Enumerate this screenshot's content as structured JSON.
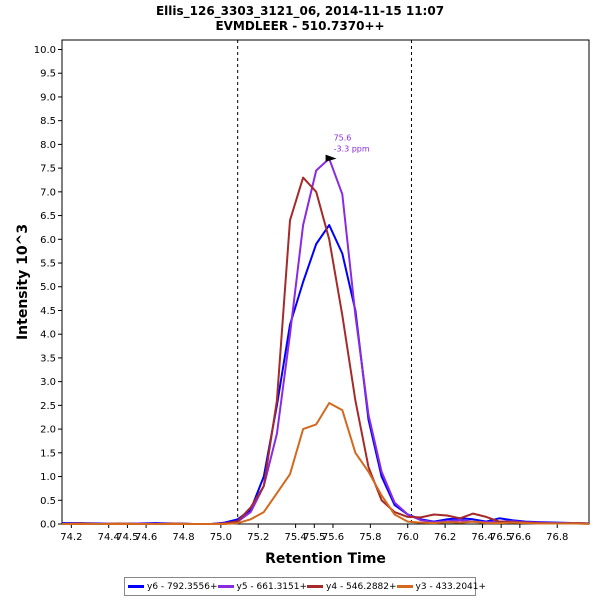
{
  "title": "Ellis_126_3303_3121_06, 2014-11-15 11:07",
  "subtitle": "EVMDLEER - 510.7370++",
  "chart_data": {
    "type": "line",
    "xlabel": "Retention Time",
    "ylabel": "Intensity 10^3",
    "xlim": [
      74.15,
      76.97
    ],
    "ylim": [
      0,
      10.2
    ],
    "x_ticks": [
      "74.2",
      "74.4",
      "74.5",
      "74.6",
      "74.8",
      "75.0",
      "75.2",
      "75.4",
      "75.5",
      "75.6",
      "75.8",
      "76.0",
      "76.2",
      "76.4",
      "76.5",
      "76.6",
      "76.8"
    ],
    "y_ticks": [
      "0.0",
      "0.5",
      "1.0",
      "1.5",
      "2.0",
      "2.5",
      "3.0",
      "3.5",
      "4.0",
      "4.5",
      "5.0",
      "5.5",
      "6.0",
      "6.5",
      "7.0",
      "7.5",
      "8.0",
      "8.5",
      "9.0",
      "9.5",
      "10.0"
    ],
    "integration_bounds": [
      75.09,
      76.02
    ],
    "annotation": {
      "x": 75.63,
      "y": 7.7,
      "line1": "75.6",
      "line2": "-3.3 ppm"
    },
    "series": [
      {
        "name": "y6 - 792.3556+",
        "color": "#0000ff",
        "x": [
          74.15,
          74.25,
          74.35,
          74.45,
          74.55,
          74.65,
          74.75,
          74.85,
          74.95,
          75.02,
          75.09,
          75.16,
          75.23,
          75.3,
          75.37,
          75.44,
          75.51,
          75.58,
          75.65,
          75.72,
          75.79,
          75.86,
          75.93,
          76.0,
          76.07,
          76.14,
          76.21,
          76.28,
          76.35,
          76.42,
          76.49,
          76.56,
          76.63,
          76.7,
          76.8,
          76.9,
          76.97
        ],
        "values": [
          0.02,
          0.02,
          0.01,
          0.0,
          0.01,
          0.02,
          0.01,
          0.0,
          0.0,
          0.03,
          0.1,
          0.3,
          1.0,
          2.5,
          4.2,
          5.1,
          5.9,
          6.3,
          5.7,
          4.5,
          2.2,
          1.0,
          0.4,
          0.2,
          0.1,
          0.05,
          0.1,
          0.12,
          0.1,
          0.05,
          0.12,
          0.08,
          0.05,
          0.04,
          0.03,
          0.02,
          0.01
        ]
      },
      {
        "name": "y5 - 661.3151+",
        "color": "#8a2be2",
        "x": [
          74.15,
          74.25,
          74.35,
          74.45,
          74.55,
          74.65,
          74.75,
          74.85,
          74.95,
          75.02,
          75.09,
          75.16,
          75.23,
          75.3,
          75.37,
          75.44,
          75.51,
          75.58,
          75.65,
          75.72,
          75.79,
          75.86,
          75.93,
          76.0,
          76.07,
          76.14,
          76.21,
          76.28,
          76.35,
          76.42,
          76.49,
          76.56,
          76.63,
          76.7,
          76.8,
          76.9,
          76.97
        ],
        "values": [
          0.0,
          0.01,
          0.0,
          0.0,
          0.01,
          0.0,
          0.01,
          0.0,
          0.0,
          0.02,
          0.05,
          0.25,
          0.8,
          1.9,
          4.0,
          6.3,
          7.45,
          7.7,
          6.95,
          4.4,
          2.3,
          1.1,
          0.45,
          0.2,
          0.08,
          0.04,
          0.06,
          0.08,
          0.05,
          0.04,
          0.05,
          0.06,
          0.04,
          0.03,
          0.02,
          0.02,
          0.01
        ]
      },
      {
        "name": "y4 - 546.2882+",
        "color": "#a52a2a",
        "x": [
          74.15,
          74.25,
          74.35,
          74.45,
          74.55,
          74.65,
          74.75,
          74.85,
          74.95,
          75.02,
          75.09,
          75.16,
          75.23,
          75.3,
          75.37,
          75.44,
          75.51,
          75.58,
          75.65,
          75.72,
          75.79,
          75.86,
          75.93,
          76.0,
          76.07,
          76.14,
          76.21,
          76.28,
          76.35,
          76.42,
          76.49,
          76.56,
          76.63,
          76.7,
          76.8,
          76.9,
          76.97
        ],
        "values": [
          0.0,
          0.01,
          0.0,
          0.01,
          0.0,
          0.0,
          0.01,
          0.0,
          0.0,
          0.01,
          0.06,
          0.35,
          0.8,
          2.6,
          6.4,
          7.3,
          7.0,
          6.0,
          4.4,
          2.6,
          1.2,
          0.5,
          0.25,
          0.15,
          0.14,
          0.2,
          0.18,
          0.12,
          0.22,
          0.15,
          0.05,
          0.04,
          0.03,
          0.02,
          0.01,
          0.02,
          0.01
        ]
      },
      {
        "name": "y3 - 433.2041+",
        "color": "#d2691e",
        "x": [
          74.15,
          74.25,
          74.35,
          74.45,
          74.55,
          74.65,
          74.75,
          74.85,
          74.95,
          75.02,
          75.09,
          75.16,
          75.23,
          75.3,
          75.37,
          75.44,
          75.51,
          75.58,
          75.65,
          75.72,
          75.79,
          75.86,
          75.93,
          76.0,
          76.07,
          76.14,
          76.21,
          76.28,
          76.35,
          76.42,
          76.49,
          76.56,
          76.63,
          76.7,
          76.8,
          76.9,
          76.97
        ],
        "values": [
          0.0,
          0.0,
          0.0,
          0.0,
          0.0,
          0.0,
          0.0,
          0.0,
          0.0,
          0.0,
          0.02,
          0.1,
          0.25,
          0.65,
          1.05,
          2.0,
          2.1,
          2.55,
          2.4,
          1.5,
          1.1,
          0.6,
          0.2,
          0.05,
          0.03,
          0.02,
          0.04,
          0.03,
          0.05,
          0.02,
          0.02,
          0.03,
          0.02,
          0.01,
          0.01,
          0.01,
          0.0
        ]
      }
    ]
  }
}
